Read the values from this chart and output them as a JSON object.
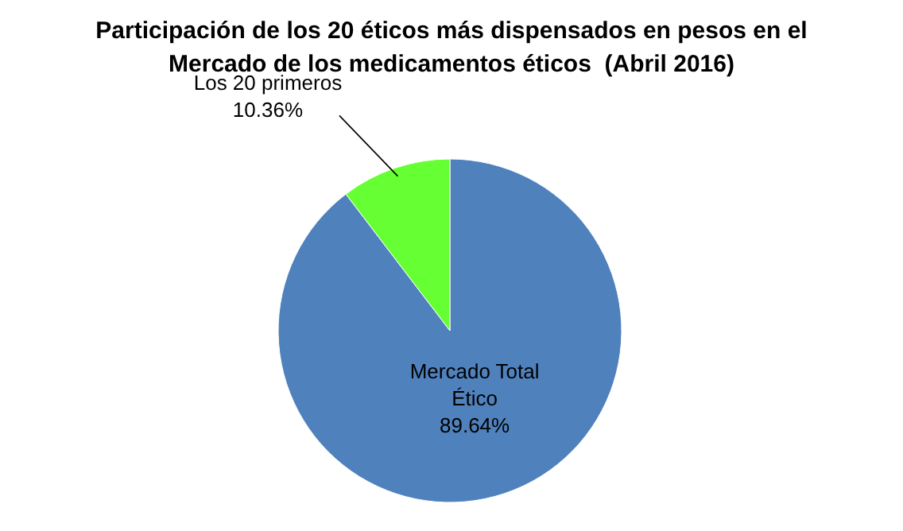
{
  "chart_data": {
    "type": "pie",
    "title": "Participación de los 20 éticos más dispensados en pesos en el Mercado de los medicamentos éticos  (Abril 2016)",
    "categories": [
      "Mercado Total Ético",
      "Los 20 primeros"
    ],
    "values": [
      89.64,
      10.36
    ],
    "colors": [
      "#4f81bd",
      "#66ff33"
    ],
    "value_labels": [
      "89.64%",
      "10.36%"
    ]
  }
}
